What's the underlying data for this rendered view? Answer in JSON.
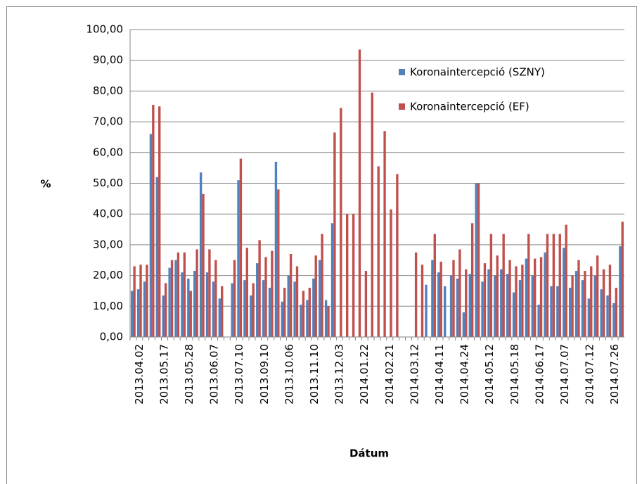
{
  "chart_data": {
    "type": "bar",
    "y_label": "%",
    "x_label": "Dátum",
    "categories": [
      null,
      "2013.04.02",
      null,
      null,
      null,
      "2013.05.17",
      null,
      null,
      null,
      "2013.05.28",
      null,
      null,
      null,
      "2013.06.07",
      null,
      null,
      null,
      "2013.07.10",
      null,
      null,
      null,
      "2013.09.10",
      null,
      null,
      null,
      "2013.10.06",
      null,
      null,
      null,
      "2013.11.10",
      null,
      null,
      null,
      "2013.12.03",
      null,
      null,
      null,
      "2014.01.22",
      null,
      null,
      null,
      "2014.02.21",
      null,
      null,
      null,
      "2014.03.12",
      null,
      null,
      null,
      "2014.04.11",
      null,
      null,
      null,
      "2014.04.24",
      null,
      null,
      null,
      "2014.05.12",
      null,
      null,
      null,
      "2014.05.18",
      null,
      null,
      null,
      "2014.06.17",
      null,
      null,
      null,
      "2014.07.07",
      null,
      null,
      null,
      "2014.07.12",
      null,
      null,
      null,
      "2014.07.26",
      null
    ],
    "series": [
      {
        "name": "Koronaintercepció (SZNY)",
        "color": "#4f81bd",
        "values": [
          15,
          15.5,
          18,
          66,
          52,
          13.5,
          22.5,
          25,
          21,
          19,
          21.5,
          53.5,
          21,
          18,
          12.5,
          null,
          17.5,
          51,
          18.5,
          13.5,
          24,
          18.5,
          16,
          57,
          11.5,
          20,
          18,
          10.5,
          12,
          19,
          25,
          12,
          37,
          null,
          null,
          null,
          null,
          null,
          null,
          null,
          null,
          null,
          null,
          null,
          null,
          null,
          null,
          17,
          25,
          21,
          16.5,
          20,
          19,
          8,
          20.5,
          50,
          18,
          22,
          20,
          22,
          20.5,
          14.5,
          18.5,
          25.5,
          20,
          10.5,
          27.5,
          16.5,
          16.5,
          29,
          16,
          21.5,
          18.5,
          12.5,
          20,
          15.5,
          13.5,
          11,
          29.5
        ]
      },
      {
        "name": "Koronaintercepció (EF)",
        "color": "#c0504d",
        "values": [
          23,
          23.5,
          23.5,
          75.5,
          75,
          17.5,
          25,
          27.5,
          27.5,
          15,
          28.5,
          46.5,
          28.5,
          25,
          16.5,
          null,
          25,
          58,
          29,
          17.5,
          31.5,
          26,
          28,
          48,
          16,
          27,
          23,
          15,
          16,
          26.5,
          33.5,
          10,
          66.5,
          74.5,
          40,
          40,
          93.5,
          21.5,
          79.5,
          55.5,
          67,
          41.5,
          53,
          null,
          null,
          27.5,
          23.5,
          null,
          33.5,
          24.5,
          null,
          25,
          28.5,
          22,
          37,
          50,
          24,
          33.5,
          26.5,
          33.5,
          25,
          23,
          23.5,
          33.5,
          25.5,
          26,
          33.5,
          33.5,
          33.5,
          36.5,
          20,
          25,
          21.5,
          23,
          26.5,
          22,
          23.5,
          16,
          37.5
        ]
      }
    ],
    "ylim": [
      0,
      100
    ],
    "yticks": [
      {
        "value": 0,
        "label": "0,00"
      },
      {
        "value": 10,
        "label": "10,00"
      },
      {
        "value": 20,
        "label": "20,00"
      },
      {
        "value": 30,
        "label": "30,00"
      },
      {
        "value": 40,
        "label": "40,00"
      },
      {
        "value": 50,
        "label": "50,00"
      },
      {
        "value": 60,
        "label": "60,00"
      },
      {
        "value": 70,
        "label": "70,00"
      },
      {
        "value": 80,
        "label": "80,00"
      },
      {
        "value": 90,
        "label": "90,00"
      },
      {
        "value": 100,
        "label": "100,00"
      }
    ],
    "grid": true,
    "legend": "top-right"
  }
}
